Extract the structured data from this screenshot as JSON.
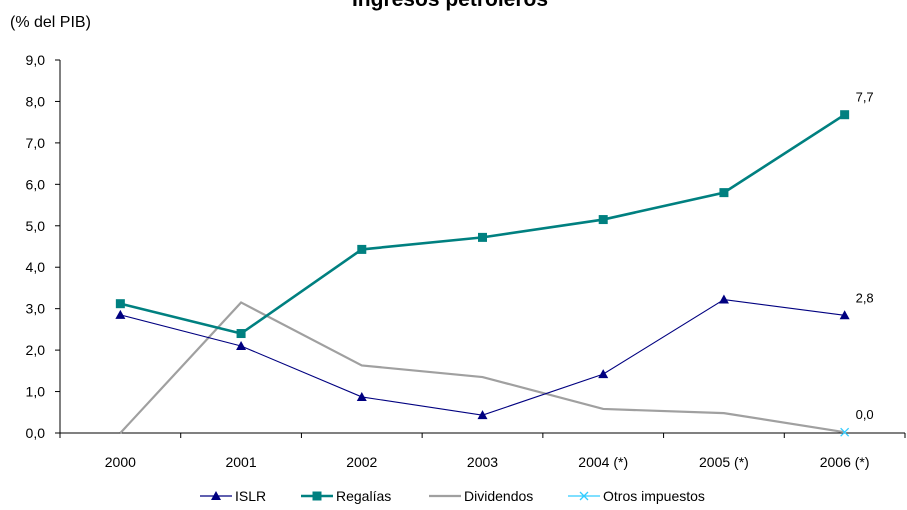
{
  "chart_data": {
    "type": "line",
    "title": "Ingresos petroleros",
    "ylabel": "(%  del PIB)",
    "xlabel": "",
    "categories": [
      "2000",
      "2001",
      "2002",
      "2003",
      "2004 (*)",
      "2005 (*)",
      "2006 (*)"
    ],
    "ylim": [
      0,
      9
    ],
    "yticks": [
      "0,0",
      "1,0",
      "2,0",
      "3,0",
      "4,0",
      "5,0",
      "6,0",
      "7,0",
      "8,0",
      "9,0"
    ],
    "grid": false,
    "legend_position": "bottom",
    "series": [
      {
        "name": "ISLR",
        "color": "#000080",
        "marker": "triangle",
        "values": [
          2.85,
          2.1,
          0.87,
          0.43,
          1.42,
          3.22,
          2.84
        ]
      },
      {
        "name": "Regalías",
        "color": "#008080",
        "marker": "square",
        "values": [
          3.12,
          2.4,
          4.43,
          4.72,
          5.15,
          5.8,
          7.68
        ]
      },
      {
        "name": "Dividendos",
        "color": "#a0a0a0",
        "marker": "none",
        "values": [
          0.0,
          3.15,
          1.63,
          1.35,
          0.58,
          0.48,
          0.02
        ]
      },
      {
        "name": "Otros impuestos",
        "color": "#33ccff",
        "marker": "x",
        "values": [
          null,
          null,
          null,
          null,
          null,
          null,
          0.02
        ]
      }
    ],
    "data_labels": [
      {
        "series": 1,
        "index": 6,
        "text": "7,7"
      },
      {
        "series": 0,
        "index": 6,
        "text": "2,8"
      },
      {
        "series": 3,
        "index": 6,
        "text": "0,0"
      }
    ]
  }
}
